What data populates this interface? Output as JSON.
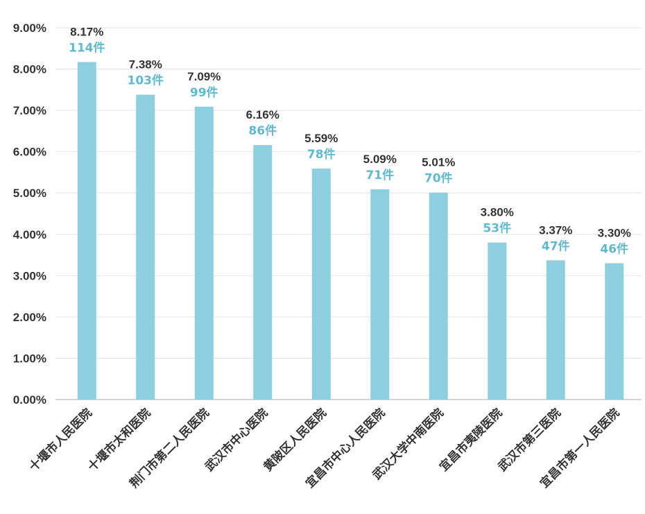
{
  "chart_data": {
    "type": "bar",
    "title": "",
    "xlabel": "",
    "ylabel": "",
    "ylim": [
      0,
      9
    ],
    "y_ticks": [
      "0.00%",
      "1.00%",
      "2.00%",
      "3.00%",
      "4.00%",
      "5.00%",
      "6.00%",
      "7.00%",
      "8.00%",
      "9.00%"
    ],
    "grid": true,
    "categories": [
      "十堰市人民医院",
      "十堰市太和医院",
      "荆门市第二人民医院",
      "武汉市中心医院",
      "黄陂区人民医院",
      "宜昌市中心人民医院",
      "武汉大学中南医院",
      "宜昌市夷陵医院",
      "武汉市第三医院",
      "宜昌市第一人民医院"
    ],
    "values": [
      8.17,
      7.38,
      7.09,
      6.16,
      5.59,
      5.09,
      5.01,
      3.8,
      3.37,
      3.3
    ],
    "percent_labels": [
      "8.17%",
      "7.38%",
      "7.09%",
      "6.16%",
      "5.59%",
      "5.09%",
      "5.01%",
      "3.80%",
      "3.37%",
      "3.30%"
    ],
    "count_labels": [
      "114件",
      "103件",
      "99件",
      "86件",
      "78件",
      "71件",
      "70件",
      "53件",
      "47件",
      "46件"
    ],
    "colors": {
      "bar": "#8ecfdf",
      "count_label": "#5fb9cf",
      "grid": "#e3e3e3",
      "axis": "#c8c8c8"
    }
  }
}
